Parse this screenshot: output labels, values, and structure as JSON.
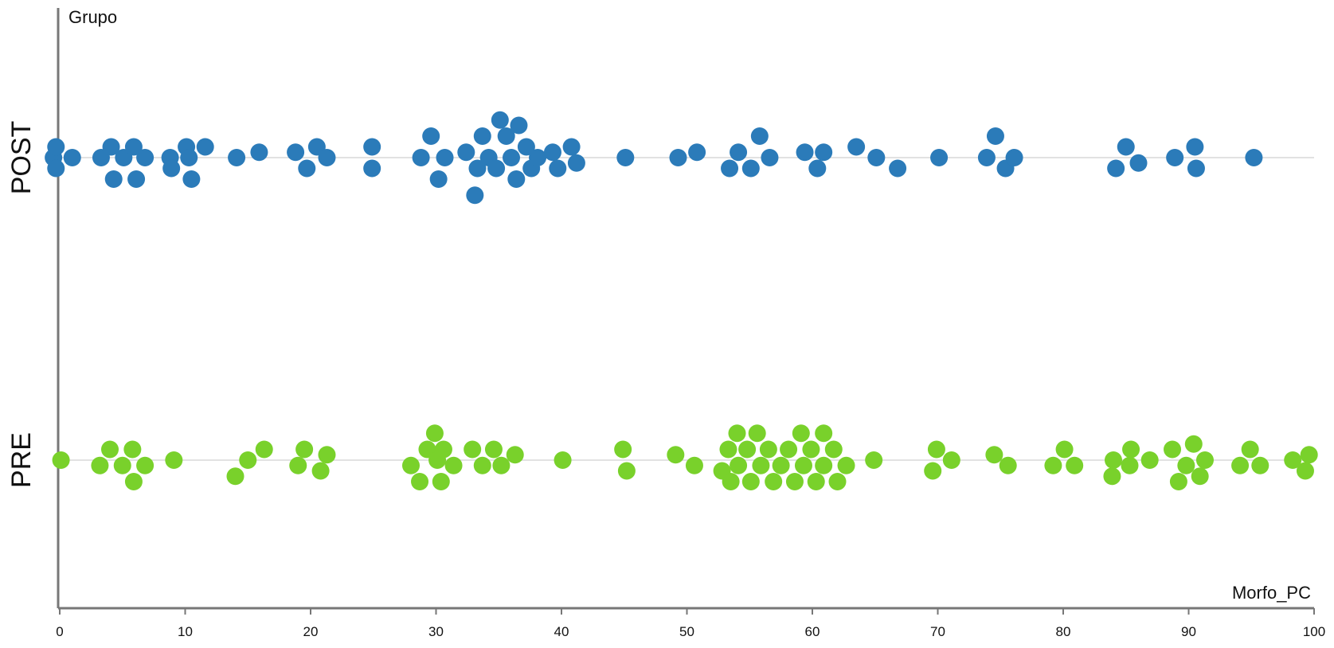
{
  "chart_data": {
    "type": "scatter",
    "subtype": "beeswarm",
    "title": "",
    "xlabel": "Morfo_PC",
    "ylabel": "Grupo",
    "xlim": [
      0,
      100
    ],
    "x_ticks": [
      "0",
      "10",
      "20",
      "30",
      "40",
      "50",
      "60",
      "70",
      "80",
      "90",
      "100"
    ],
    "grid": false,
    "legend": "none",
    "groups": [
      {
        "name": "POST",
        "color": "#2b7bb9",
        "points": [
          {
            "x": -0.5,
            "y": 0
          },
          {
            "x": -0.3,
            "y": 1
          },
          {
            "x": 1.0,
            "y": 0
          },
          {
            "x": -0.3,
            "y": -1
          },
          {
            "x": 3.3,
            "y": 0
          },
          {
            "x": 4.1,
            "y": 1
          },
          {
            "x": 5.1,
            "y": 0
          },
          {
            "x": 5.9,
            "y": 1
          },
          {
            "x": 4.3,
            "y": -2
          },
          {
            "x": 6.1,
            "y": -2
          },
          {
            "x": 6.8,
            "y": 0
          },
          {
            "x": 8.8,
            "y": 0
          },
          {
            "x": 10.1,
            "y": 1
          },
          {
            "x": 10.3,
            "y": 0
          },
          {
            "x": 8.9,
            "y": -1
          },
          {
            "x": 10.5,
            "y": -2
          },
          {
            "x": 11.6,
            "y": 1
          },
          {
            "x": 14.1,
            "y": 0
          },
          {
            "x": 15.9,
            "y": 0.5
          },
          {
            "x": 18.8,
            "y": 0.5
          },
          {
            "x": 20.5,
            "y": 1
          },
          {
            "x": 19.7,
            "y": -1
          },
          {
            "x": 21.3,
            "y": 0
          },
          {
            "x": 24.9,
            "y": 1
          },
          {
            "x": 24.9,
            "y": -1
          },
          {
            "x": 28.8,
            "y": 0
          },
          {
            "x": 29.6,
            "y": 2
          },
          {
            "x": 30.2,
            "y": -2
          },
          {
            "x": 30.7,
            "y": 0
          },
          {
            "x": 32.4,
            "y": 0.5
          },
          {
            "x": 33.3,
            "y": -1
          },
          {
            "x": 33.7,
            "y": 2
          },
          {
            "x": 34.2,
            "y": 0
          },
          {
            "x": 34.8,
            "y": -1
          },
          {
            "x": 35.1,
            "y": 3.5
          },
          {
            "x": 35.6,
            "y": 2
          },
          {
            "x": 33.1,
            "y": -3.5
          },
          {
            "x": 36.0,
            "y": 0
          },
          {
            "x": 36.4,
            "y": -2
          },
          {
            "x": 36.6,
            "y": 3
          },
          {
            "x": 37.2,
            "y": 1
          },
          {
            "x": 37.6,
            "y": -1
          },
          {
            "x": 38.1,
            "y": 0
          },
          {
            "x": 39.3,
            "y": 0.5
          },
          {
            "x": 39.7,
            "y": -1
          },
          {
            "x": 40.8,
            "y": 1
          },
          {
            "x": 41.2,
            "y": -0.5
          },
          {
            "x": 45.1,
            "y": 0
          },
          {
            "x": 49.3,
            "y": 0
          },
          {
            "x": 50.8,
            "y": 0.5
          },
          {
            "x": 53.4,
            "y": -1
          },
          {
            "x": 54.1,
            "y": 0.5
          },
          {
            "x": 55.1,
            "y": -1
          },
          {
            "x": 55.8,
            "y": 2
          },
          {
            "x": 56.6,
            "y": 0
          },
          {
            "x": 59.4,
            "y": 0.5
          },
          {
            "x": 60.4,
            "y": -1
          },
          {
            "x": 60.9,
            "y": 0.5
          },
          {
            "x": 63.5,
            "y": 1
          },
          {
            "x": 65.1,
            "y": 0
          },
          {
            "x": 66.8,
            "y": -1
          },
          {
            "x": 70.1,
            "y": 0
          },
          {
            "x": 73.9,
            "y": 0
          },
          {
            "x": 74.6,
            "y": 2
          },
          {
            "x": 75.4,
            "y": -1
          },
          {
            "x": 76.1,
            "y": 0
          },
          {
            "x": 84.2,
            "y": -1
          },
          {
            "x": 85.0,
            "y": 1
          },
          {
            "x": 86.0,
            "y": -0.5
          },
          {
            "x": 88.9,
            "y": 0
          },
          {
            "x": 90.5,
            "y": 1
          },
          {
            "x": 90.6,
            "y": -1
          },
          {
            "x": 95.2,
            "y": 0
          }
        ]
      },
      {
        "name": "PRE",
        "color": "#79d12b",
        "points": [
          {
            "x": 0.1,
            "y": 0
          },
          {
            "x": 3.2,
            "y": -0.5
          },
          {
            "x": 4.0,
            "y": 1
          },
          {
            "x": 5.0,
            "y": -0.5
          },
          {
            "x": 5.8,
            "y": 1
          },
          {
            "x": 5.9,
            "y": -2
          },
          {
            "x": 6.8,
            "y": -0.5
          },
          {
            "x": 9.1,
            "y": 0
          },
          {
            "x": 14.0,
            "y": -1.5
          },
          {
            "x": 15.0,
            "y": 0
          },
          {
            "x": 16.3,
            "y": 1
          },
          {
            "x": 19.0,
            "y": -0.5
          },
          {
            "x": 19.5,
            "y": 1
          },
          {
            "x": 20.8,
            "y": -1
          },
          {
            "x": 21.3,
            "y": 0.5
          },
          {
            "x": 28.0,
            "y": -0.5
          },
          {
            "x": 28.7,
            "y": -2
          },
          {
            "x": 29.3,
            "y": 1
          },
          {
            "x": 29.9,
            "y": 2.5
          },
          {
            "x": 30.1,
            "y": 0
          },
          {
            "x": 30.4,
            "y": -2
          },
          {
            "x": 30.6,
            "y": 1
          },
          {
            "x": 31.4,
            "y": -0.5
          },
          {
            "x": 32.9,
            "y": 1
          },
          {
            "x": 33.7,
            "y": -0.5
          },
          {
            "x": 34.6,
            "y": 1
          },
          {
            "x": 35.2,
            "y": -0.5
          },
          {
            "x": 36.3,
            "y": 0.5
          },
          {
            "x": 40.1,
            "y": 0
          },
          {
            "x": 44.9,
            "y": 1
          },
          {
            "x": 45.2,
            "y": -1
          },
          {
            "x": 49.1,
            "y": 0.5
          },
          {
            "x": 50.6,
            "y": -0.5
          },
          {
            "x": 52.8,
            "y": -1
          },
          {
            "x": 53.3,
            "y": 1
          },
          {
            "x": 53.5,
            "y": -2
          },
          {
            "x": 54.0,
            "y": 2.5
          },
          {
            "x": 54.1,
            "y": -0.5
          },
          {
            "x": 54.8,
            "y": 1
          },
          {
            "x": 55.1,
            "y": -2
          },
          {
            "x": 55.6,
            "y": 2.5
          },
          {
            "x": 55.9,
            "y": -0.5
          },
          {
            "x": 56.5,
            "y": 1
          },
          {
            "x": 56.9,
            "y": -2
          },
          {
            "x": 57.5,
            "y": -0.5
          },
          {
            "x": 58.1,
            "y": 1
          },
          {
            "x": 58.6,
            "y": -2
          },
          {
            "x": 59.1,
            "y": 2.5
          },
          {
            "x": 59.3,
            "y": -0.5
          },
          {
            "x": 59.9,
            "y": 1
          },
          {
            "x": 60.3,
            "y": -2
          },
          {
            "x": 60.9,
            "y": 2.5
          },
          {
            "x": 60.9,
            "y": -0.5
          },
          {
            "x": 61.7,
            "y": 1
          },
          {
            "x": 62.0,
            "y": -2
          },
          {
            "x": 62.7,
            "y": -0.5
          },
          {
            "x": 64.9,
            "y": 0
          },
          {
            "x": 69.6,
            "y": -1
          },
          {
            "x": 69.9,
            "y": 1
          },
          {
            "x": 71.1,
            "y": 0
          },
          {
            "x": 74.5,
            "y": 0.5
          },
          {
            "x": 75.6,
            "y": -0.5
          },
          {
            "x": 79.2,
            "y": -0.5
          },
          {
            "x": 80.1,
            "y": 1
          },
          {
            "x": 80.9,
            "y": -0.5
          },
          {
            "x": 83.9,
            "y": -1.5
          },
          {
            "x": 84.0,
            "y": 0
          },
          {
            "x": 85.3,
            "y": -0.5
          },
          {
            "x": 85.4,
            "y": 1
          },
          {
            "x": 86.9,
            "y": 0
          },
          {
            "x": 88.7,
            "y": 1
          },
          {
            "x": 89.2,
            "y": -2
          },
          {
            "x": 89.8,
            "y": -0.5
          },
          {
            "x": 90.4,
            "y": 1.5
          },
          {
            "x": 90.9,
            "y": -1.5
          },
          {
            "x": 91.3,
            "y": 0
          },
          {
            "x": 94.1,
            "y": -0.5
          },
          {
            "x": 94.9,
            "y": 1
          },
          {
            "x": 95.7,
            "y": -0.5
          },
          {
            "x": 98.3,
            "y": 0
          },
          {
            "x": 99.3,
            "y": -1
          },
          {
            "x": 99.6,
            "y": 0.5
          }
        ]
      }
    ]
  }
}
